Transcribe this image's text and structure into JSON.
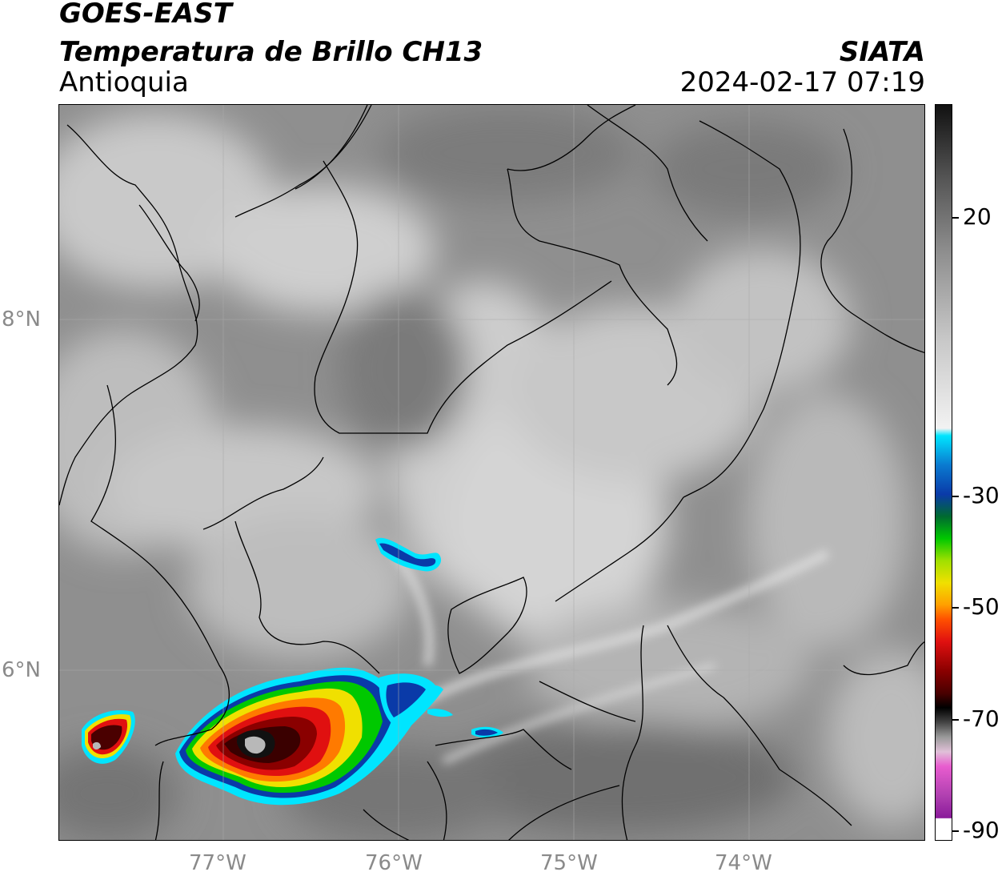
{
  "header": {
    "title_line1": "GOES-EAST",
    "title_line2": "Temperatura de Brillo CH13",
    "region": "Antioquia",
    "brand": "SIATA",
    "datetime": "2024-02-17 07:19"
  },
  "map": {
    "lat_labels": [
      "8°N",
      "6°N"
    ],
    "lon_labels": [
      "77°W",
      "76°W",
      "75°W",
      "74°W"
    ],
    "background_color": "#8a8a8a",
    "border_color": "#000000"
  },
  "colorbar": {
    "tick_labels": [
      "20",
      "-30",
      "-50",
      "-70",
      "-90"
    ],
    "colors": {
      "gray_top": "#111111",
      "gray_mid": "#9a9a9a",
      "gray_light": "#f2f2f2",
      "cyan": "#00e5ff",
      "blue": "#0a3aa8",
      "green": "#00c800",
      "yellow": "#f0e000",
      "orange": "#ff7a00",
      "red": "#e01010",
      "dark_red": "#4a0000",
      "black": "#000000",
      "pink": "#e85ccf",
      "purple": "#8a1a9a"
    }
  }
}
